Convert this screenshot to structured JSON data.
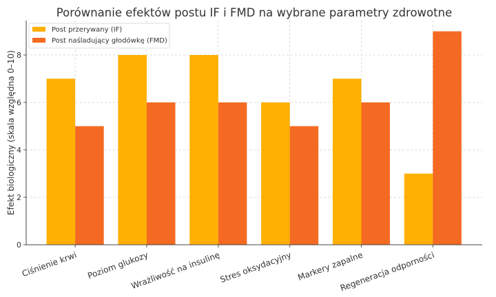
{
  "chart_data": {
    "type": "bar",
    "title": "Porównanie efektów postu IF i FMD na wybrane parametry zdrowotne",
    "xlabel": "",
    "ylabel": "Efekt biologiczny (skala względna 0–10)",
    "categories": [
      "Ciśnienie krwi",
      "Poziom glukozy",
      "Wrażliwość na insulinę",
      "Stres oksydacyjny",
      "Markery zapalne",
      "Regeneracja odporności"
    ],
    "series": [
      {
        "name": "Post przerywany (IF)",
        "values": [
          7,
          8,
          8,
          6,
          7,
          3
        ],
        "color": "#FFB000"
      },
      {
        "name": "Post naśladujący głodówkę (FMD)",
        "values": [
          5,
          6,
          6,
          5,
          6,
          9
        ],
        "color": "#F46A22"
      }
    ],
    "ylim": [
      0,
      9.45
    ],
    "yticks": [
      "0",
      "2",
      "4",
      "6",
      "8"
    ],
    "grid": true,
    "legend": "top-left"
  }
}
